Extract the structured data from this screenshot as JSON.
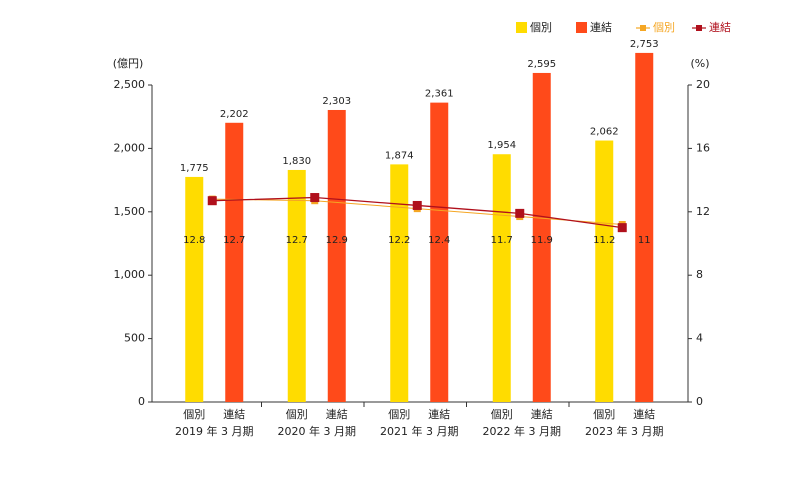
{
  "chart_data": {
    "type": "bar_line",
    "categories": [
      "2019 年 3 月期",
      "2020 年 3 月期",
      "2021 年 3 月期",
      "2022 年 3 月期",
      "2023 年 3 月期"
    ],
    "y_label": "(億円)",
    "y2_label": "(%)",
    "ylim": [
      0,
      2500
    ],
    "yticks": [
      0,
      500,
      {
        "value": 1000,
        "label": "1,000"
      },
      {
        "value": 1500,
        "label": "1,500"
      },
      {
        "value": 2000,
        "label": "2,000"
      },
      {
        "value": 2500,
        "label": "2,500"
      }
    ],
    "y2lim": [
      0,
      20
    ],
    "y2ticks": [
      0,
      4,
      8,
      12,
      16,
      20
    ],
    "series": [
      {
        "name": "個別",
        "kind": "bar",
        "color": "#ffdc00",
        "values": [
          1775,
          1830,
          1874,
          1954,
          2062
        ],
        "value_labels": [
          "1,775",
          "1,830",
          "1,874",
          "1,954",
          "2,062"
        ]
      },
      {
        "name": "連結",
        "kind": "bar",
        "color": "#ff4a1a",
        "values": [
          2202,
          2303,
          2361,
          2595,
          2753
        ],
        "value_labels": [
          "2,202",
          "2,303",
          "2,361",
          "2,595",
          "2,753"
        ]
      },
      {
        "name": "個別",
        "kind": "line",
        "axis": "y2",
        "color": "#f5a623",
        "values": [
          12.8,
          12.7,
          12.2,
          11.7,
          11.2
        ]
      },
      {
        "name": "連結",
        "kind": "line",
        "axis": "y2",
        "color": "#b0101c",
        "values": [
          12.7,
          12.9,
          12.4,
          11.9,
          11.0
        ]
      }
    ]
  }
}
